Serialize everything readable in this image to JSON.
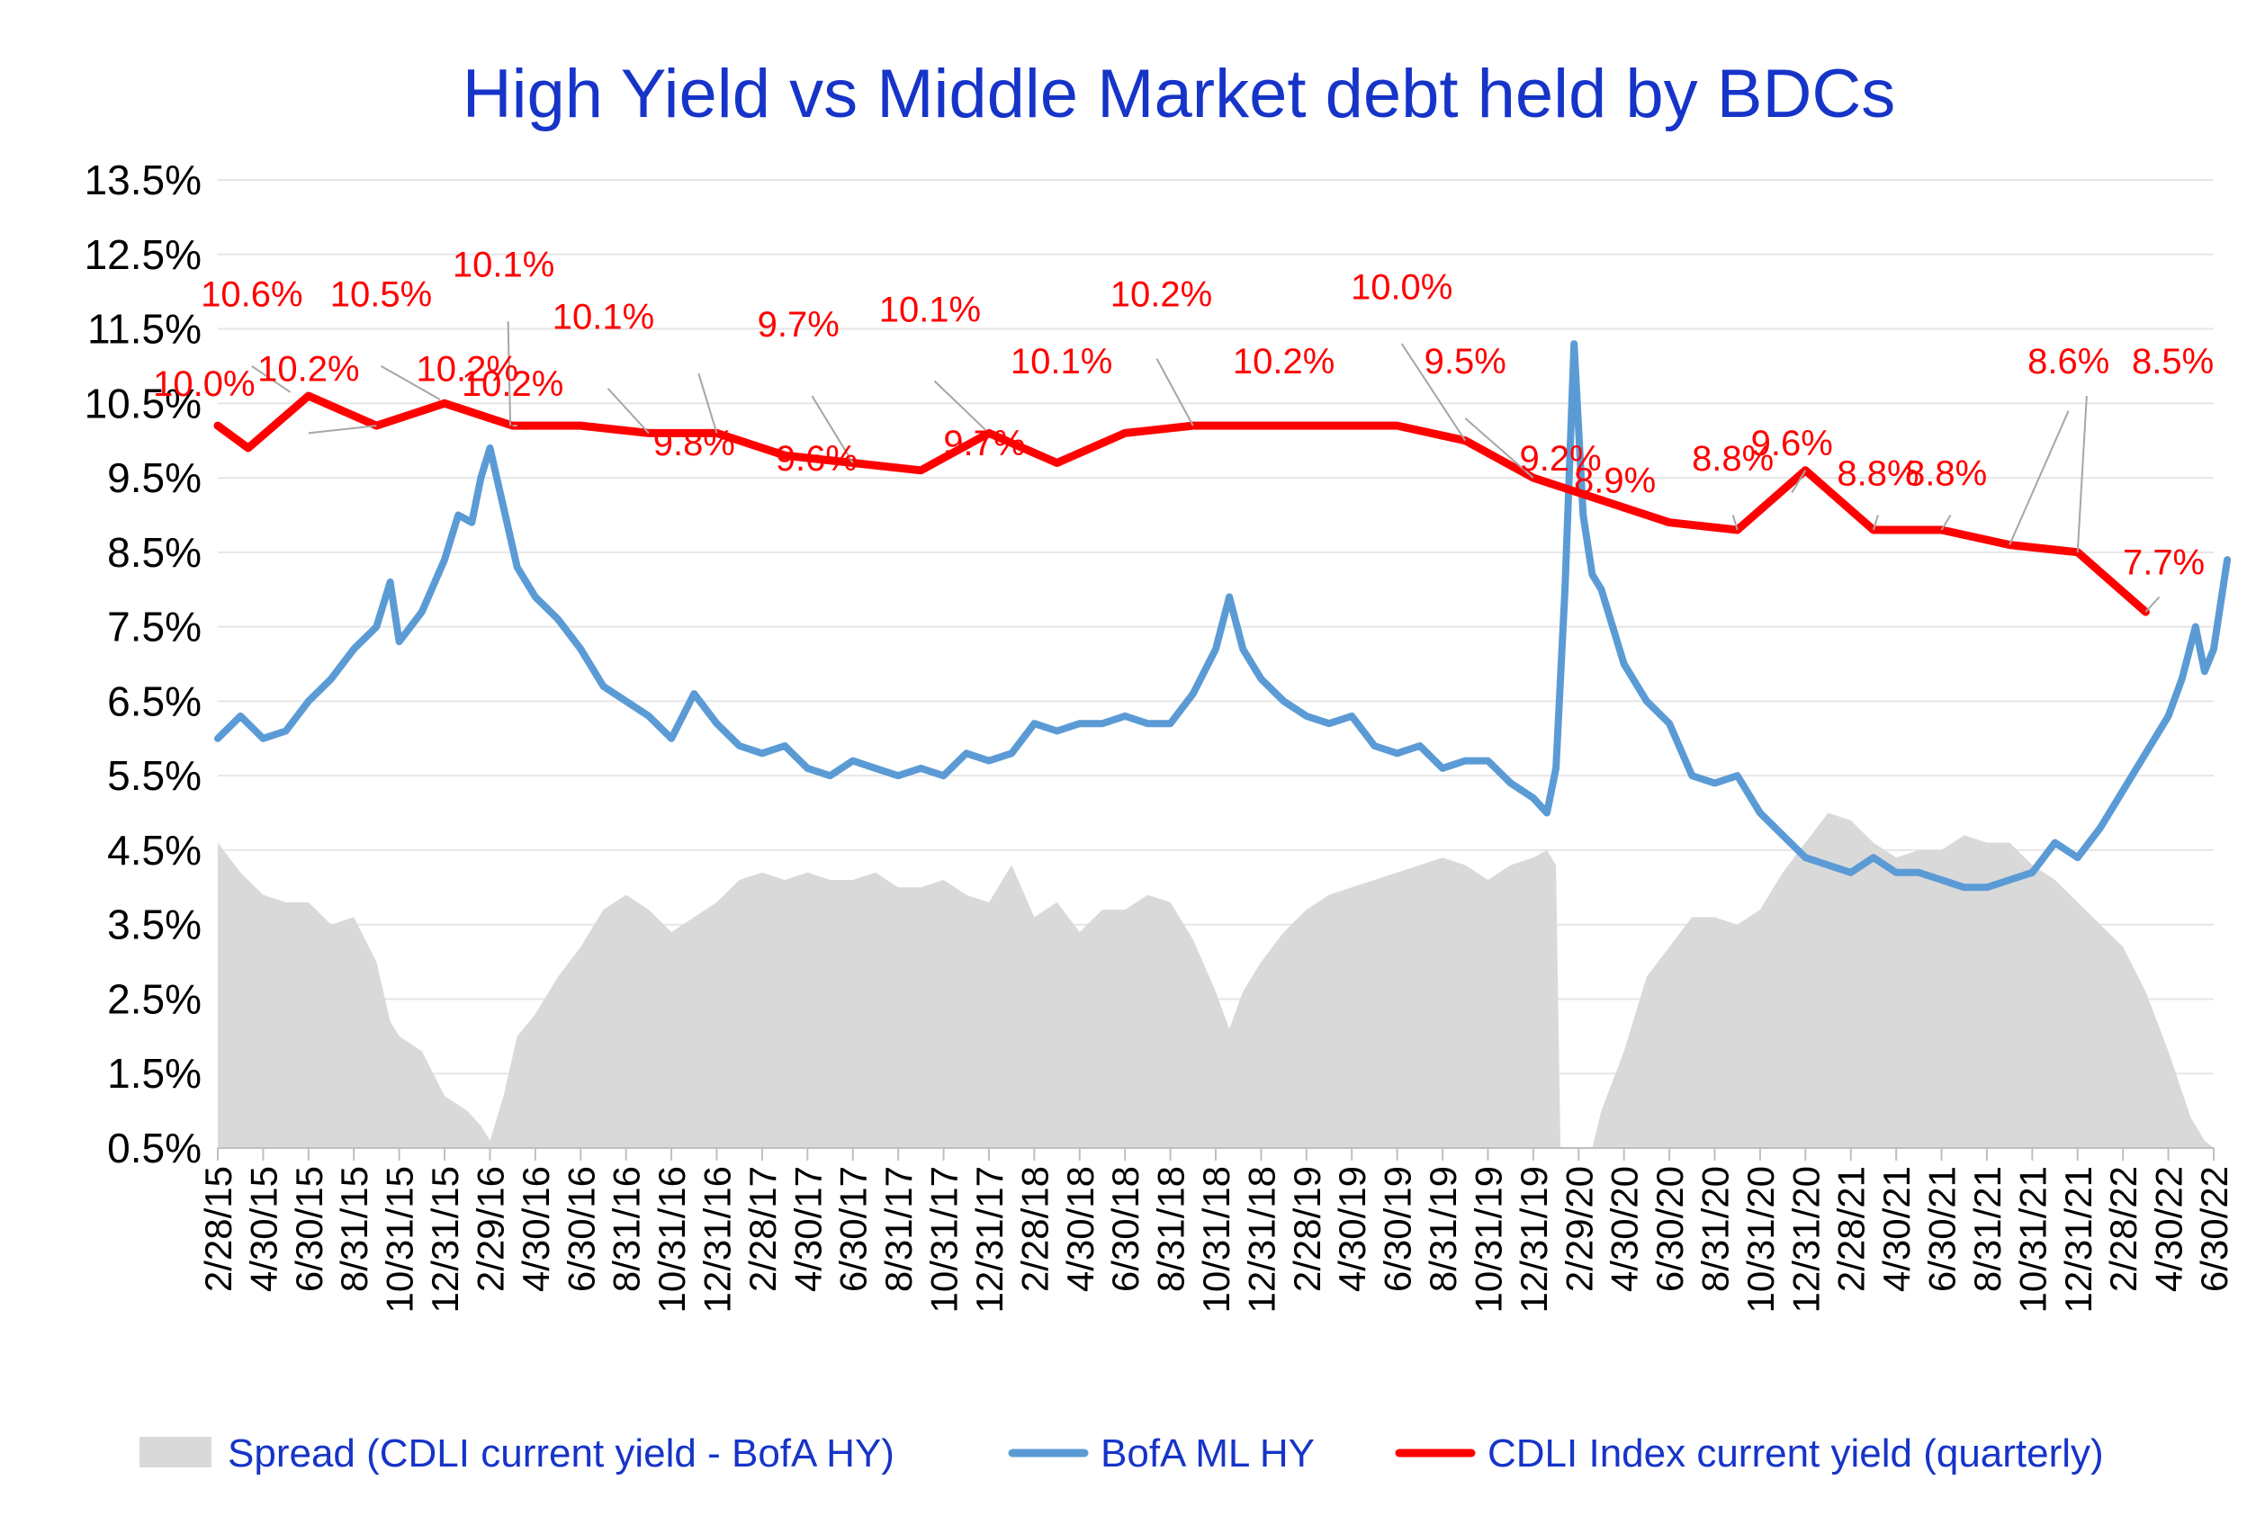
{
  "chart_data": {
    "type": "line",
    "title": "High Yield  vs  Middle Market debt held by BDCs",
    "xlabel": "",
    "ylabel": "",
    "ylim": [
      0.5,
      13.5
    ],
    "yticks": [
      "13.5%",
      "12.5%",
      "11.5%",
      "10.5%",
      "9.5%",
      "8.5%",
      "7.5%",
      "6.5%",
      "5.5%",
      "4.5%",
      "3.5%",
      "2.5%",
      "1.5%",
      "0.5%"
    ],
    "categories": [
      "2/28/15",
      "4/30/15",
      "6/30/15",
      "8/31/15",
      "10/31/15",
      "12/31/15",
      "2/29/16",
      "4/30/16",
      "6/30/16",
      "8/31/16",
      "10/31/16",
      "12/31/16",
      "2/28/17",
      "4/30/17",
      "6/30/17",
      "8/31/17",
      "10/31/17",
      "12/31/17",
      "2/28/18",
      "4/30/18",
      "6/30/18",
      "8/31/18",
      "10/31/18",
      "12/31/18",
      "2/28/19",
      "4/30/19",
      "6/30/19",
      "8/31/19",
      "10/31/19",
      "12/31/19",
      "2/29/20",
      "4/30/20",
      "6/30/20",
      "8/31/20",
      "10/31/20",
      "12/31/20",
      "2/28/21",
      "4/30/21",
      "6/30/21",
      "8/31/21",
      "10/31/21",
      "12/31/21",
      "2/28/22",
      "4/30/22",
      "6/30/22"
    ],
    "grid": true,
    "legend_position": "bottom",
    "series": [
      {
        "name": "Spread (CDLI current yield - BofA HY)",
        "kind": "area",
        "color": "#d9d9d9",
        "points": [
          [
            0,
            4.6
          ],
          [
            0.5,
            4.2
          ],
          [
            1,
            3.9
          ],
          [
            1.5,
            3.8
          ],
          [
            2,
            3.8
          ],
          [
            2.5,
            3.5
          ],
          [
            3,
            3.6
          ],
          [
            3.5,
            3.0
          ],
          [
            3.8,
            2.2
          ],
          [
            4,
            2.0
          ],
          [
            4.5,
            1.8
          ],
          [
            5,
            1.2
          ],
          [
            5.5,
            1.0
          ],
          [
            5.8,
            0.8
          ],
          [
            6,
            0.6
          ],
          [
            6.3,
            1.2
          ],
          [
            6.6,
            2.0
          ],
          [
            7,
            2.3
          ],
          [
            7.5,
            2.8
          ],
          [
            8,
            3.2
          ],
          [
            8.5,
            3.7
          ],
          [
            9,
            3.9
          ],
          [
            9.5,
            3.7
          ],
          [
            10,
            3.4
          ],
          [
            10.5,
            3.6
          ],
          [
            11,
            3.8
          ],
          [
            11.5,
            4.1
          ],
          [
            12,
            4.2
          ],
          [
            12.5,
            4.1
          ],
          [
            13,
            4.2
          ],
          [
            13.5,
            4.1
          ],
          [
            14,
            4.1
          ],
          [
            14.5,
            4.2
          ],
          [
            15,
            4.0
          ],
          [
            15.5,
            4.0
          ],
          [
            16,
            4.1
          ],
          [
            16.5,
            3.9
          ],
          [
            17,
            3.8
          ],
          [
            17.5,
            4.3
          ],
          [
            18,
            3.6
          ],
          [
            18.5,
            3.8
          ],
          [
            19,
            3.4
          ],
          [
            19.5,
            3.7
          ],
          [
            20,
            3.7
          ],
          [
            20.5,
            3.9
          ],
          [
            21,
            3.8
          ],
          [
            21.5,
            3.3
          ],
          [
            22,
            2.6
          ],
          [
            22.3,
            2.1
          ],
          [
            22.6,
            2.6
          ],
          [
            23,
            3.0
          ],
          [
            23.5,
            3.4
          ],
          [
            24,
            3.7
          ],
          [
            24.5,
            3.9
          ],
          [
            25,
            4.0
          ],
          [
            25.5,
            4.1
          ],
          [
            26,
            4.2
          ],
          [
            26.5,
            4.3
          ],
          [
            27,
            4.4
          ],
          [
            27.5,
            4.3
          ],
          [
            28,
            4.1
          ],
          [
            28.5,
            4.3
          ],
          [
            29,
            4.4
          ],
          [
            29.3,
            4.5
          ],
          [
            29.5,
            4.3
          ],
          [
            29.6,
            0.5
          ],
          [
            30,
            0.5
          ],
          [
            30.3,
            0.5
          ],
          [
            30.5,
            1.0
          ],
          [
            31,
            1.8
          ],
          [
            31.5,
            2.8
          ],
          [
            32,
            3.2
          ],
          [
            32.5,
            3.6
          ],
          [
            33,
            3.6
          ],
          [
            33.5,
            3.5
          ],
          [
            34,
            3.7
          ],
          [
            34.5,
            4.2
          ],
          [
            35,
            4.6
          ],
          [
            35.5,
            5.0
          ],
          [
            36,
            4.9
          ],
          [
            36.5,
            4.6
          ],
          [
            37,
            4.4
          ],
          [
            37.5,
            4.5
          ],
          [
            38,
            4.5
          ],
          [
            38.5,
            4.7
          ],
          [
            39,
            4.6
          ],
          [
            39.5,
            4.6
          ],
          [
            40,
            4.3
          ],
          [
            40.5,
            4.1
          ],
          [
            41,
            3.8
          ],
          [
            41.5,
            3.5
          ],
          [
            42,
            3.2
          ],
          [
            42.5,
            2.6
          ],
          [
            43,
            1.8
          ],
          [
            43.5,
            0.9
          ],
          [
            43.8,
            0.6
          ],
          [
            44,
            0.5
          ]
        ]
      },
      {
        "name": "BofA ML HY",
        "kind": "line",
        "color": "#5b9bd5",
        "points": [
          [
            0,
            6.0
          ],
          [
            0.5,
            6.3
          ],
          [
            1,
            6.0
          ],
          [
            1.5,
            6.1
          ],
          [
            2,
            6.5
          ],
          [
            2.5,
            6.8
          ],
          [
            3,
            7.2
          ],
          [
            3.5,
            7.5
          ],
          [
            3.8,
            8.1
          ],
          [
            4,
            7.3
          ],
          [
            4.5,
            7.7
          ],
          [
            5,
            8.4
          ],
          [
            5.3,
            9.0
          ],
          [
            5.6,
            8.9
          ],
          [
            5.8,
            9.5
          ],
          [
            6,
            9.9
          ],
          [
            6.3,
            9.1
          ],
          [
            6.6,
            8.3
          ],
          [
            7,
            7.9
          ],
          [
            7.5,
            7.6
          ],
          [
            8,
            7.2
          ],
          [
            8.5,
            6.7
          ],
          [
            9,
            6.5
          ],
          [
            9.5,
            6.3
          ],
          [
            10,
            6.0
          ],
          [
            10.5,
            6.6
          ],
          [
            11,
            6.2
          ],
          [
            11.5,
            5.9
          ],
          [
            12,
            5.8
          ],
          [
            12.5,
            5.9
          ],
          [
            13,
            5.6
          ],
          [
            13.5,
            5.5
          ],
          [
            14,
            5.7
          ],
          [
            14.5,
            5.6
          ],
          [
            15,
            5.5
          ],
          [
            15.5,
            5.6
          ],
          [
            16,
            5.5
          ],
          [
            16.5,
            5.8
          ],
          [
            17,
            5.7
          ],
          [
            17.5,
            5.8
          ],
          [
            18,
            6.2
          ],
          [
            18.5,
            6.1
          ],
          [
            19,
            6.2
          ],
          [
            19.5,
            6.2
          ],
          [
            20,
            6.3
          ],
          [
            20.5,
            6.2
          ],
          [
            21,
            6.2
          ],
          [
            21.5,
            6.6
          ],
          [
            22,
            7.2
          ],
          [
            22.3,
            7.9
          ],
          [
            22.6,
            7.2
          ],
          [
            23,
            6.8
          ],
          [
            23.5,
            6.5
          ],
          [
            24,
            6.3
          ],
          [
            24.5,
            6.2
          ],
          [
            25,
            6.3
          ],
          [
            25.5,
            5.9
          ],
          [
            26,
            5.8
          ],
          [
            26.5,
            5.9
          ],
          [
            27,
            5.6
          ],
          [
            27.5,
            5.7
          ],
          [
            28,
            5.7
          ],
          [
            28.5,
            5.4
          ],
          [
            29,
            5.2
          ],
          [
            29.3,
            5.0
          ],
          [
            29.5,
            5.6
          ],
          [
            29.7,
            8.0
          ],
          [
            29.9,
            11.3
          ],
          [
            30.1,
            9.0
          ],
          [
            30.3,
            8.2
          ],
          [
            30.5,
            8.0
          ],
          [
            31,
            7.0
          ],
          [
            31.5,
            6.5
          ],
          [
            32,
            6.2
          ],
          [
            32.5,
            5.5
          ],
          [
            33,
            5.4
          ],
          [
            33.5,
            5.5
          ],
          [
            34,
            5.0
          ],
          [
            34.5,
            4.7
          ],
          [
            35,
            4.4
          ],
          [
            35.5,
            4.3
          ],
          [
            36,
            4.2
          ],
          [
            36.5,
            4.4
          ],
          [
            37,
            4.2
          ],
          [
            37.5,
            4.2
          ],
          [
            38,
            4.1
          ],
          [
            38.5,
            4.0
          ],
          [
            39,
            4.0
          ],
          [
            39.5,
            4.1
          ],
          [
            40,
            4.2
          ],
          [
            40.5,
            4.6
          ],
          [
            41,
            4.4
          ],
          [
            41.5,
            4.8
          ],
          [
            42,
            5.3
          ],
          [
            42.5,
            5.8
          ],
          [
            43,
            6.3
          ],
          [
            43.3,
            6.8
          ],
          [
            43.6,
            7.5
          ],
          [
            43.8,
            6.9
          ],
          [
            44,
            7.2
          ],
          [
            44.3,
            8.4
          ]
        ]
      },
      {
        "name": "CDLI Index current yield (quarterly)",
        "kind": "line",
        "color": "#ff0000",
        "points": [
          [
            0,
            10.2
          ],
          [
            0.67,
            9.9
          ],
          [
            2,
            10.6
          ],
          [
            3.5,
            10.2
          ],
          [
            5,
            10.5
          ],
          [
            6.5,
            10.2
          ],
          [
            8,
            10.2
          ],
          [
            9.5,
            10.1
          ],
          [
            11,
            10.1
          ],
          [
            12.5,
            9.8
          ],
          [
            14,
            9.7
          ],
          [
            15.5,
            9.6
          ],
          [
            17,
            10.1
          ],
          [
            18.5,
            9.7
          ],
          [
            20,
            10.1
          ],
          [
            21.5,
            10.2
          ],
          [
            23,
            10.2
          ],
          [
            24.5,
            10.2
          ],
          [
            26,
            10.2
          ],
          [
            27.5,
            10.0
          ],
          [
            29,
            9.5
          ],
          [
            30.5,
            9.2
          ],
          [
            32,
            8.9
          ],
          [
            33.5,
            8.8
          ],
          [
            35,
            9.6
          ],
          [
            36.5,
            8.8
          ],
          [
            38,
            8.8
          ],
          [
            39.5,
            8.6
          ],
          [
            41,
            8.5
          ],
          [
            42.5,
            7.7
          ]
        ]
      }
    ],
    "data_labels": [
      "10.0%",
      "10.6%",
      "10.2%",
      "10.5%",
      "10.2%",
      "10.1%",
      "10.2%",
      "10.1%",
      "9.8%",
      "9.7%",
      "9.6%",
      "10.1%",
      "9.7%",
      "10.1%",
      "10.2%",
      "10.2%",
      "10.0%",
      "9.5%",
      "9.2%",
      "8.9%",
      "8.8%",
      "9.6%",
      "8.8%",
      "8.8%",
      "8.6%",
      "8.5%",
      "7.7%"
    ],
    "data_label_positions": [
      [
        -0.3,
        10.6
      ],
      [
        0.75,
        11.8
      ],
      [
        2.0,
        10.8
      ],
      [
        3.6,
        11.8
      ],
      [
        5.5,
        10.8
      ],
      [
        6.3,
        12.2
      ],
      [
        6.5,
        10.6
      ],
      [
        8.5,
        11.5
      ],
      [
        10.5,
        9.8
      ],
      [
        12.8,
        11.4
      ],
      [
        13.2,
        9.6
      ],
      [
        15.7,
        11.6
      ],
      [
        16.9,
        9.8
      ],
      [
        18.6,
        10.9
      ],
      [
        20.8,
        11.8
      ],
      [
        23.5,
        10.9
      ],
      [
        26.1,
        11.9
      ],
      [
        27.5,
        10.9
      ],
      [
        29.6,
        9.6
      ],
      [
        30.8,
        9.3
      ],
      [
        33.4,
        9.6
      ],
      [
        34.7,
        9.8
      ],
      [
        36.6,
        9.4
      ],
      [
        38.1,
        9.4
      ],
      [
        40.8,
        10.9
      ],
      [
        43.1,
        10.9
      ],
      [
        42.9,
        8.2
      ]
    ],
    "leader_lines": [
      [
        [
          0.75,
          11.0
        ],
        [
          1.6,
          10.65
        ]
      ],
      [
        [
          3.6,
          11.0
        ],
        [
          4.9,
          10.55
        ]
      ],
      [
        [
          2.0,
          10.1
        ],
        [
          3.5,
          10.2
        ]
      ],
      [
        [
          6.5,
          10.2
        ],
        [
          6.6,
          10.2
        ]
      ],
      [
        [
          6.4,
          11.6
        ],
        [
          6.45,
          10.2
        ]
      ],
      [
        [
          8.6,
          10.7
        ],
        [
          9.5,
          10.1
        ]
      ],
      [
        [
          10.6,
          10.9
        ],
        [
          11.0,
          10.1
        ]
      ],
      [
        [
          13.1,
          10.6
        ],
        [
          14.0,
          9.7
        ]
      ],
      [
        [
          15.8,
          10.8
        ],
        [
          17.0,
          10.1
        ]
      ],
      [
        [
          20.7,
          11.1
        ],
        [
          21.5,
          10.2
        ]
      ],
      [
        [
          26.1,
          11.3
        ],
        [
          27.5,
          10.0
        ]
      ],
      [
        [
          27.5,
          10.3
        ],
        [
          29.0,
          9.5
        ]
      ],
      [
        [
          33.4,
          9.0
        ],
        [
          33.5,
          8.8
        ]
      ],
      [
        [
          34.7,
          9.3
        ],
        [
          35.0,
          9.6
        ]
      ],
      [
        [
          36.6,
          9.0
        ],
        [
          36.5,
          8.8
        ]
      ],
      [
        [
          38.2,
          9.0
        ],
        [
          38.0,
          8.8
        ]
      ],
      [
        [
          40.8,
          10.4
        ],
        [
          39.5,
          8.6
        ]
      ],
      [
        [
          41.2,
          10.6
        ],
        [
          41.0,
          8.5
        ]
      ],
      [
        [
          42.8,
          7.9
        ],
        [
          42.5,
          7.7
        ]
      ]
    ]
  },
  "legend": {
    "items": [
      {
        "label": "Spread (CDLI current yield - BofA HY)",
        "color": "#d9d9d9",
        "kind": "area"
      },
      {
        "label": "BofA ML HY",
        "color": "#5b9bd5",
        "kind": "line"
      },
      {
        "label": "CDLI Index current yield (quarterly)",
        "color": "#ff0000",
        "kind": "line"
      }
    ]
  }
}
